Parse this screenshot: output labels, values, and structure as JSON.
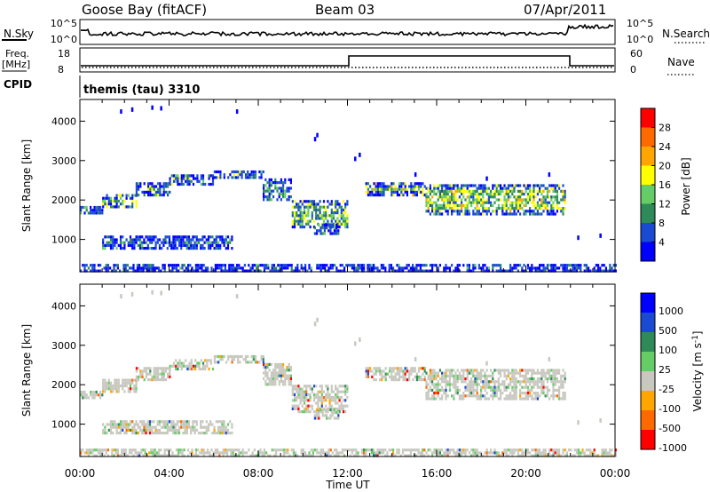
{
  "header": {
    "station": "Goose Bay (fitACF)",
    "beam": "Beam 03",
    "date": "07/Apr/2011"
  },
  "noise_panel": {
    "left_label": "N.Sky",
    "left_ticks": [
      "10^5",
      "10^0"
    ],
    "right_ticks": [
      "10^5",
      "10^0"
    ],
    "right_label": "N.Search"
  },
  "freq_panel": {
    "left_label_1": "Freq.",
    "left_label_2": "[MHz]",
    "left_ticks": [
      "18",
      "8"
    ],
    "right_ticks": [
      "60",
      "0"
    ],
    "right_label": "Nave"
  },
  "cpid_panel": {
    "label": "CPID",
    "program": "themis (tau) 3310"
  },
  "chart_data": [
    {
      "type": "heatmap",
      "title": "",
      "xlabel": "Time UT",
      "ylabel": "Slant Range [km]",
      "x_ticks": [
        "00:00",
        "04:00",
        "08:00",
        "12:00",
        "16:00",
        "20:00",
        "00:00"
      ],
      "y_ticks": [
        1000,
        2000,
        3000,
        4000
      ],
      "xlim_hours": [
        0,
        24
      ],
      "ylim_km": [
        180,
        4550
      ],
      "colorbar": {
        "label": "Power [dB]",
        "ticks": [
          4,
          8,
          12,
          16,
          20,
          24,
          28
        ],
        "range": [
          0,
          32
        ],
        "colors": [
          "#0000ff",
          "#1a4ad2",
          "#2e8b57",
          "#66cd66",
          "#ffff00",
          "#ffa500",
          "#ff6a00",
          "#ff0000"
        ]
      },
      "echo_bands": [
        {
          "t0": 0.0,
          "t1": 1.0,
          "r0": 1650,
          "r1": 1850,
          "level": 10
        },
        {
          "t0": 1.0,
          "t1": 2.5,
          "r0": 1850,
          "r1": 2150,
          "level": 12
        },
        {
          "t0": 2.5,
          "t1": 4.0,
          "r0": 2150,
          "r1": 2450,
          "level": 13
        },
        {
          "t0": 4.0,
          "t1": 6.0,
          "r0": 2400,
          "r1": 2650,
          "level": 12
        },
        {
          "t0": 6.0,
          "t1": 8.2,
          "r0": 2550,
          "r1": 2750,
          "level": 10
        },
        {
          "t0": 8.2,
          "t1": 9.5,
          "r0": 2000,
          "r1": 2550,
          "level": 9
        },
        {
          "t0": 9.5,
          "t1": 12.0,
          "r0": 1300,
          "r1": 2000,
          "level": 12
        },
        {
          "t0": 12.8,
          "t1": 15.5,
          "r0": 2150,
          "r1": 2450,
          "level": 14
        },
        {
          "t0": 15.5,
          "t1": 21.8,
          "r0": 1650,
          "r1": 2400,
          "level": 14
        },
        {
          "t0": 1.0,
          "t1": 6.8,
          "r0": 800,
          "r1": 1100,
          "level": 8
        },
        {
          "t0": 10.5,
          "t1": 11.6,
          "r0": 1150,
          "r1": 1400,
          "level": 9
        },
        {
          "t0": 0.0,
          "t1": 24.0,
          "r0": 200,
          "r1": 380,
          "level": 6
        }
      ]
    },
    {
      "type": "heatmap",
      "title": "",
      "xlabel": "Time UT",
      "ylabel": "Slant Range [km]",
      "x_ticks": [
        "00:00",
        "04:00",
        "08:00",
        "12:00",
        "16:00",
        "20:00",
        "00:00"
      ],
      "y_ticks": [
        1000,
        2000,
        3000,
        4000
      ],
      "xlim_hours": [
        0,
        24
      ],
      "ylim_km": [
        180,
        4550
      ],
      "colorbar": {
        "label": "Velocity [m s^-1]",
        "ticks": [
          "1000",
          "500",
          "100",
          "25",
          "-25",
          "-100",
          "-500",
          "-1000"
        ],
        "colors": [
          "#0000ff",
          "#1a4ad2",
          "#2e8b57",
          "#66cd66",
          "#c8c8c0",
          "#ffa500",
          "#ff6a00",
          "#ff0000"
        ]
      },
      "dominant_value": "ground scatter (grey)"
    }
  ]
}
